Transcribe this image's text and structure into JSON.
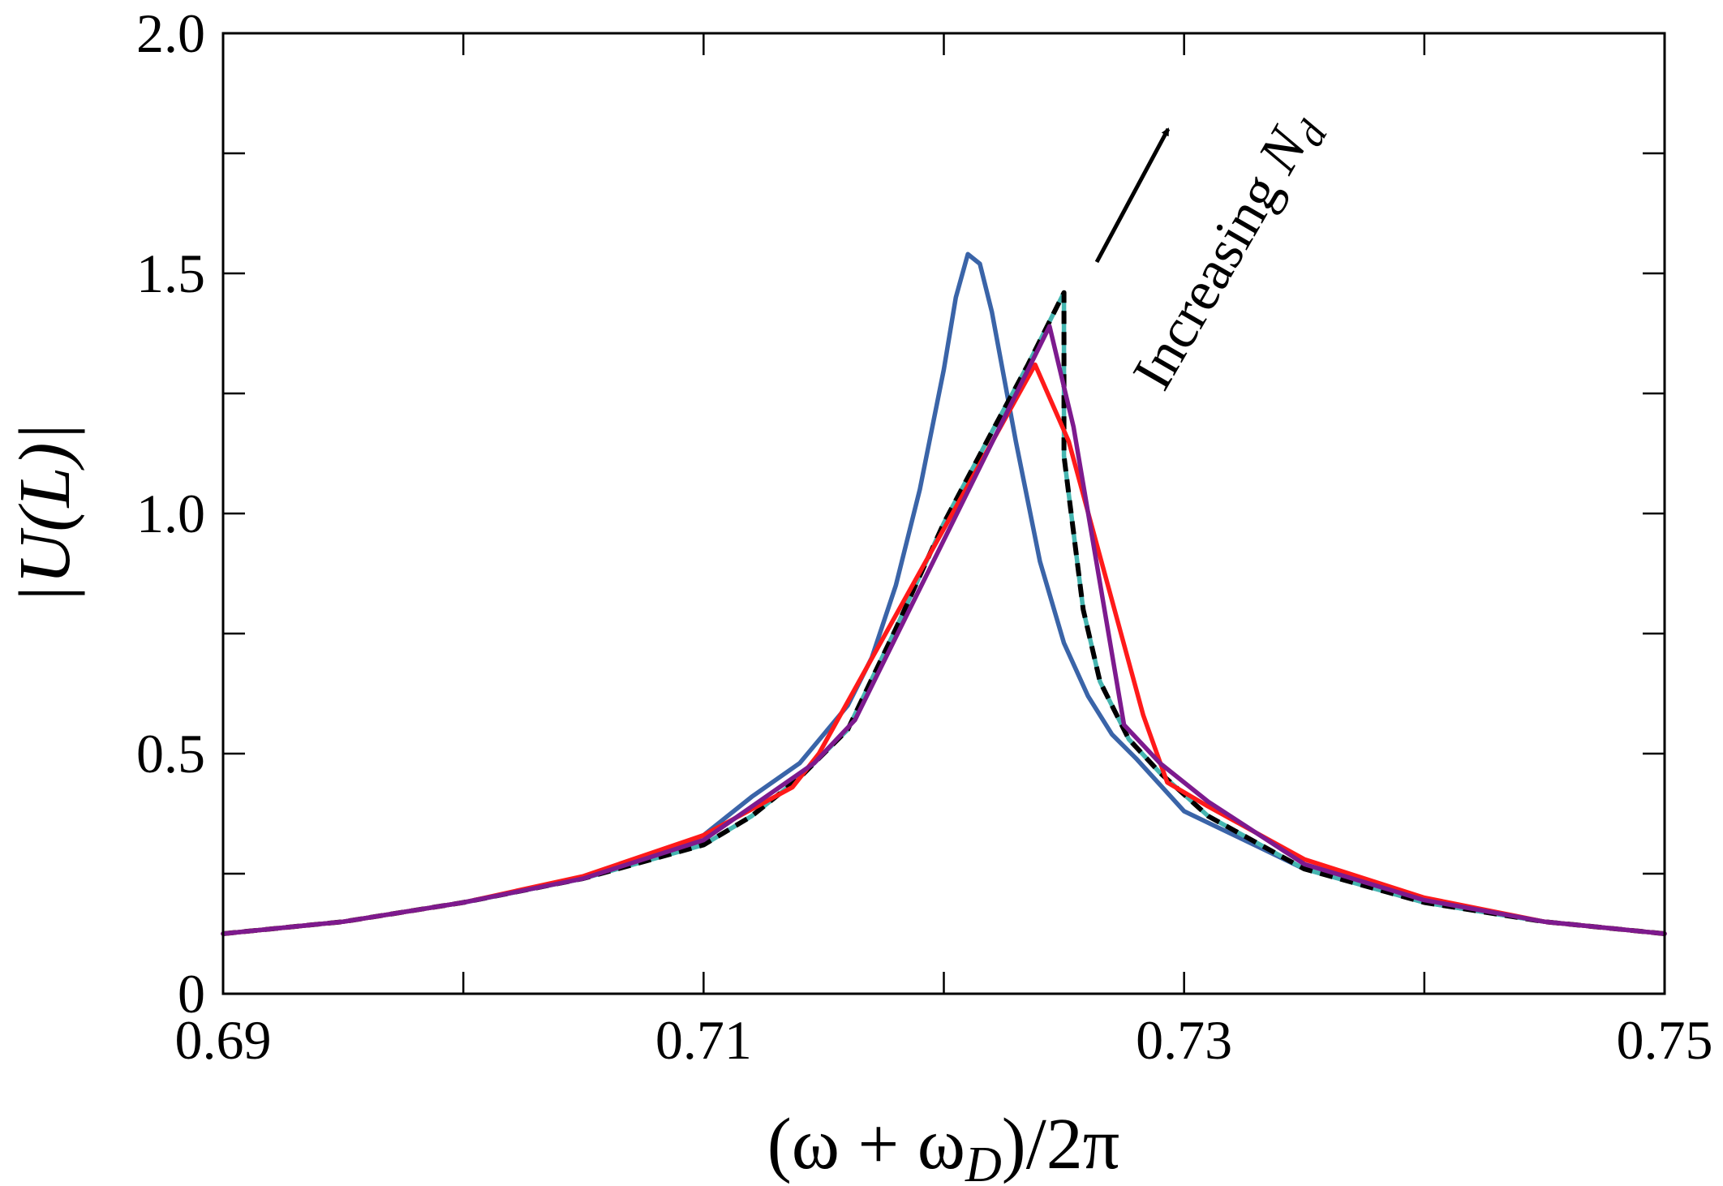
{
  "chart_data": {
    "type": "line",
    "xlabel": {
      "pre": "(ω + ω",
      "sub": "D",
      "post": ")/2π"
    },
    "ylabel": "|U(L)|",
    "annotation": {
      "text": "Increasing",
      "var": "N",
      "sub": "d"
    },
    "xlim": [
      0.69,
      0.75
    ],
    "ylim": [
      0,
      2
    ],
    "xticks": [
      0.69,
      0.71,
      0.73,
      0.75
    ],
    "xminorticks": [
      0.7,
      0.72,
      0.74
    ],
    "yticks": [
      0,
      0.5,
      {
        "value": 1,
        "label": "1.0"
      },
      1.5,
      {
        "value": 2,
        "label": "2.0"
      }
    ],
    "yminorticks": [
      0.25,
      0.75,
      1.25,
      1.75
    ],
    "series": [
      {
        "color": "#3a64a8",
        "dash": false,
        "x": [
          0.69,
          0.695,
          0.7,
          0.705,
          0.708,
          0.71,
          0.712,
          0.714,
          0.716,
          0.717,
          0.718,
          0.719,
          0.72,
          0.7205,
          0.721,
          0.7215,
          0.722,
          0.723,
          0.724,
          0.725,
          0.726,
          0.727,
          0.728,
          0.73,
          0.735,
          0.74,
          0.745,
          0.75
        ],
        "values": [
          0.125,
          0.15,
          0.19,
          0.24,
          0.29,
          0.33,
          0.41,
          0.48,
          0.6,
          0.7,
          0.85,
          1.05,
          1.3,
          1.45,
          1.54,
          1.52,
          1.42,
          1.15,
          0.9,
          0.73,
          0.62,
          0.54,
          0.49,
          0.38,
          0.26,
          0.19,
          0.15,
          0.125
        ]
      },
      {
        "color": "#45b5b0",
        "dash": false,
        "x": [
          0.69,
          0.695,
          0.7,
          0.705,
          0.71,
          0.712,
          0.714,
          0.716,
          0.718,
          0.72,
          0.722,
          0.7235,
          0.725,
          0.725,
          0.7258,
          0.7265,
          0.7277,
          0.729,
          0.731,
          0.735,
          0.74,
          0.745,
          0.75
        ],
        "values": [
          0.125,
          0.15,
          0.19,
          0.24,
          0.31,
          0.37,
          0.45,
          0.55,
          0.76,
          0.98,
          1.17,
          1.31,
          1.46,
          1.12,
          0.8,
          0.65,
          0.53,
          0.46,
          0.37,
          0.26,
          0.19,
          0.15,
          0.125
        ]
      },
      {
        "color": "#000000",
        "dash": true,
        "x": [
          0.69,
          0.695,
          0.7,
          0.705,
          0.71,
          0.712,
          0.714,
          0.716,
          0.718,
          0.72,
          0.722,
          0.7235,
          0.725,
          0.725,
          0.7258,
          0.7265,
          0.7277,
          0.729,
          0.731,
          0.735,
          0.74,
          0.745,
          0.75
        ],
        "values": [
          0.125,
          0.15,
          0.19,
          0.24,
          0.31,
          0.37,
          0.45,
          0.55,
          0.76,
          0.98,
          1.17,
          1.31,
          1.46,
          1.12,
          0.8,
          0.65,
          0.53,
          0.46,
          0.37,
          0.26,
          0.19,
          0.15,
          0.125
        ]
      },
      {
        "color": "#ff1a1a",
        "dash": false,
        "x": [
          0.69,
          0.695,
          0.7,
          0.705,
          0.71,
          0.7137,
          0.7148,
          0.7238,
          0.7252,
          0.7283,
          0.7293,
          0.731,
          0.735,
          0.74,
          0.745,
          0.75
        ],
        "values": [
          0.125,
          0.15,
          0.19,
          0.245,
          0.33,
          0.43,
          0.5,
          1.31,
          1.15,
          0.58,
          0.44,
          0.39,
          0.28,
          0.2,
          0.15,
          0.125
        ]
      },
      {
        "color": "#7d1a8e",
        "dash": false,
        "x": [
          0.69,
          0.695,
          0.7,
          0.705,
          0.71,
          0.7146,
          0.7163,
          0.7244,
          0.7254,
          0.7275,
          0.729,
          0.731,
          0.735,
          0.74,
          0.745,
          0.75
        ],
        "values": [
          0.125,
          0.15,
          0.19,
          0.24,
          0.32,
          0.48,
          0.57,
          1.39,
          1.18,
          0.56,
          0.48,
          0.4,
          0.27,
          0.195,
          0.15,
          0.125
        ]
      }
    ]
  }
}
